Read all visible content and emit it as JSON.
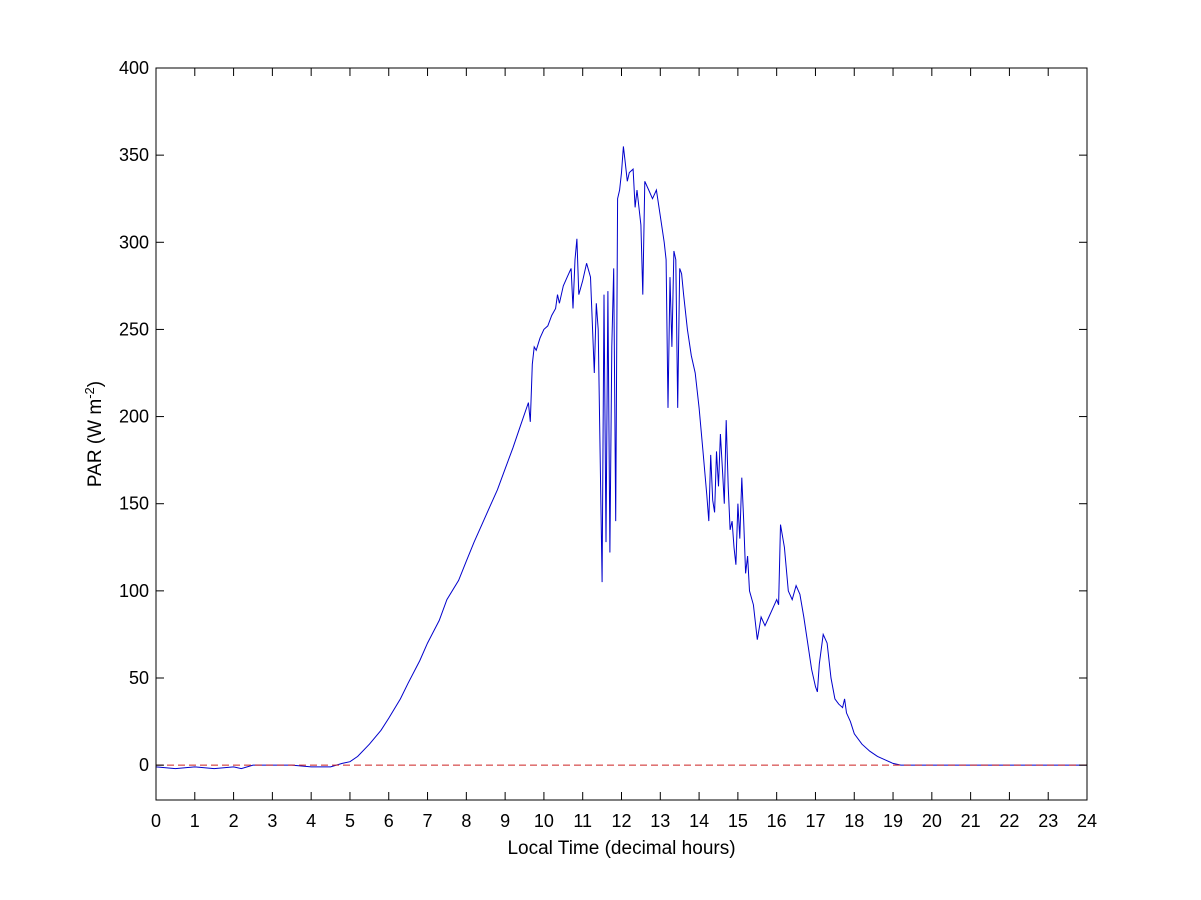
{
  "chart_data": {
    "type": "line",
    "title": "",
    "xlabel": "Local Time (decimal hours)",
    "ylabel": {
      "prefix": "PAR (W m",
      "superscript": "-2",
      "suffix": ")"
    },
    "xlim": [
      0,
      24
    ],
    "ylim": [
      -20,
      400
    ],
    "xticks": [
      0,
      1,
      2,
      3,
      4,
      5,
      6,
      7,
      8,
      9,
      10,
      11,
      12,
      13,
      14,
      15,
      16,
      17,
      18,
      19,
      20,
      21,
      22,
      23,
      24
    ],
    "yticks": [
      0,
      50,
      100,
      150,
      200,
      250,
      300,
      350,
      400
    ],
    "grid": false,
    "legend": "none",
    "series": [
      {
        "color": "#0000cc",
        "style": "solid",
        "x": [
          0,
          0.5,
          1,
          1.5,
          2,
          2.2,
          2.5,
          3,
          3.5,
          4,
          4.5,
          4.8,
          5,
          5.2,
          5.5,
          5.8,
          6,
          6.3,
          6.5,
          6.8,
          7,
          7.3,
          7.5,
          7.8,
          8,
          8.2,
          8.4,
          8.6,
          8.8,
          9,
          9.2,
          9.4,
          9.6,
          9.65,
          9.7,
          9.75,
          9.8,
          9.9,
          10,
          10.1,
          10.2,
          10.3,
          10.35,
          10.4,
          10.5,
          10.6,
          10.7,
          10.75,
          10.8,
          10.85,
          10.9,
          11,
          11.1,
          11.2,
          11.3,
          11.35,
          11.4,
          11.5,
          11.55,
          11.6,
          11.65,
          11.7,
          11.75,
          11.8,
          11.85,
          11.9,
          11.95,
          12,
          12.05,
          12.1,
          12.15,
          12.2,
          12.3,
          12.35,
          12.4,
          12.5,
          12.55,
          12.6,
          12.7,
          12.8,
          12.9,
          13,
          13.1,
          13.15,
          13.2,
          13.25,
          13.3,
          13.35,
          13.4,
          13.45,
          13.5,
          13.55,
          13.6,
          13.7,
          13.8,
          13.9,
          14,
          14.1,
          14.2,
          14.25,
          14.3,
          14.35,
          14.4,
          14.45,
          14.5,
          14.55,
          14.6,
          14.65,
          14.7,
          14.75,
          14.8,
          14.85,
          14.9,
          14.95,
          15,
          15.05,
          15.1,
          15.15,
          15.2,
          15.25,
          15.3,
          15.4,
          15.5,
          15.6,
          15.7,
          15.8,
          15.9,
          16,
          16.05,
          16.1,
          16.2,
          16.3,
          16.4,
          16.5,
          16.6,
          16.7,
          16.8,
          16.9,
          17,
          17.05,
          17.1,
          17.2,
          17.3,
          17.4,
          17.5,
          17.6,
          17.7,
          17.75,
          17.8,
          17.9,
          18,
          18.2,
          18.4,
          18.6,
          18.8,
          19,
          19.2,
          19.5,
          20,
          21,
          22,
          23,
          24
        ],
        "y": [
          -1,
          -2,
          -1,
          -2,
          -1,
          -2,
          0,
          0,
          0,
          -1,
          -1,
          1,
          2,
          5,
          12,
          20,
          27,
          38,
          47,
          60,
          70,
          83,
          95,
          106,
          117,
          128,
          138,
          148,
          158,
          170,
          182,
          195,
          208,
          197,
          230,
          240,
          238,
          245,
          250,
          252,
          258,
          262,
          270,
          265,
          275,
          280,
          285,
          262,
          290,
          302,
          270,
          278,
          288,
          280,
          225,
          265,
          250,
          105,
          270,
          128,
          272,
          122,
          240,
          285,
          140,
          325,
          330,
          340,
          355,
          345,
          335,
          340,
          342,
          320,
          330,
          310,
          270,
          335,
          330,
          325,
          330,
          315,
          300,
          290,
          205,
          280,
          240,
          295,
          290,
          205,
          285,
          282,
          270,
          250,
          235,
          225,
          205,
          180,
          155,
          140,
          178,
          152,
          145,
          180,
          160,
          190,
          170,
          150,
          198,
          160,
          135,
          140,
          125,
          115,
          150,
          130,
          165,
          140,
          110,
          120,
          100,
          92,
          72,
          85,
          80,
          85,
          90,
          95,
          92,
          138,
          125,
          100,
          95,
          103,
          98,
          85,
          70,
          55,
          45,
          42,
          58,
          75,
          70,
          50,
          38,
          35,
          33,
          38,
          30,
          25,
          18,
          12,
          8,
          5,
          3,
          1,
          0,
          0,
          0,
          0,
          0,
          0,
          0
        ]
      },
      {
        "color": "#cc2222",
        "style": "dashed",
        "x": [
          0,
          24
        ],
        "y": [
          0,
          0
        ]
      }
    ]
  }
}
